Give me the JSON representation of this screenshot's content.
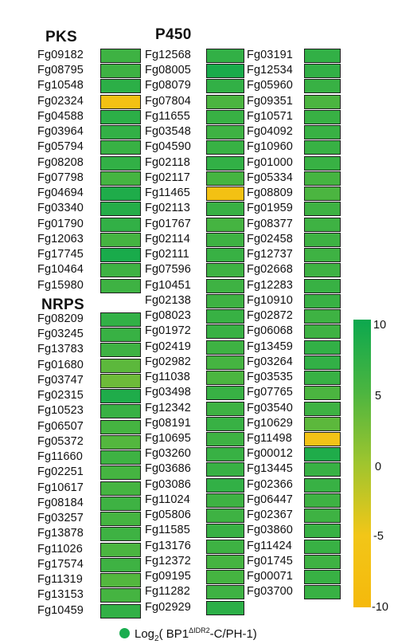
{
  "headers": {
    "pks": "PKS",
    "p450": "P450",
    "nrps": "NRPS"
  },
  "colorbar": {
    "ticks": [
      "10",
      "5",
      "0",
      "-5",
      "-10"
    ],
    "max_color": "#0ca84e",
    "min_color": "#f5b90c"
  },
  "legend": {
    "prefix": "Log",
    "sub": "2",
    "open": "( BP1",
    "sup": "ΔIDR2",
    "rest": "-C/PH-1)"
  },
  "chart_data": {
    "type": "heatmap",
    "value_range": [
      -10,
      10
    ],
    "colorbar_ticks": [
      10,
      5,
      0,
      -5,
      -10
    ],
    "legend": "Log2( BP1ΔIDR2-C/PH-1)",
    "groups": [
      {
        "name": "PKS",
        "genes": [
          "Fg09182",
          "Fg08795",
          "Fg10548",
          "Fg02324",
          "Fg04588",
          "Fg03964",
          "Fg05794",
          "Fg08208",
          "Fg07798",
          "Fg04694",
          "Fg03340",
          "Fg01790",
          "Fg12063",
          "Fg17745",
          "Fg10464",
          "Fg15980"
        ],
        "values": [
          6,
          6,
          7.5,
          -7,
          7.5,
          7,
          6.5,
          7,
          5.5,
          8.5,
          8,
          7,
          5.5,
          9,
          6,
          6
        ]
      },
      {
        "name": "NRPS",
        "genes": [
          "Fg08209",
          "Fg03245",
          "Fg13783",
          "Fg01680",
          "Fg03747",
          "Fg02315",
          "Fg10523",
          "Fg06507",
          "Fg05372",
          "Fg11660",
          "Fg02251",
          "Fg10617",
          "Fg08184",
          "Fg03257",
          "Fg13878",
          "Fg11026",
          "Fg17574",
          "Fg11319",
          "Fg13153",
          "Fg10459"
        ],
        "values": [
          7,
          6.5,
          6,
          4,
          3,
          8.5,
          6.5,
          5.5,
          4.5,
          6,
          5.5,
          5.5,
          6,
          5.5,
          6,
          5,
          6,
          4.5,
          5.5,
          7
        ]
      },
      {
        "name": "P450",
        "genes": [
          "Fg12568",
          "Fg08005",
          "Fg08079",
          "Fg07804",
          "Fg11655",
          "Fg03548",
          "Fg04590",
          "Fg02118",
          "Fg02117",
          "Fg11465",
          "Fg02113",
          "Fg01767",
          "Fg02114",
          "Fg02111",
          "Fg07596",
          "Fg10451",
          "Fg02138",
          "Fg08023",
          "Fg01972",
          "Fg02419",
          "Fg02982",
          "Fg11038",
          "Fg03498",
          "Fg12342",
          "Fg08191",
          "Fg10695",
          "Fg03260",
          "Fg03686",
          "Fg03086",
          "Fg11024",
          "Fg05806",
          "Fg11585",
          "Fg13176",
          "Fg12372",
          "Fg09195",
          "Fg11282",
          "Fg02929"
        ],
        "values": [
          7,
          9,
          7,
          5,
          6.5,
          6,
          6.5,
          7,
          5.5,
          -7,
          6.5,
          5.5,
          6,
          6.5,
          6,
          6,
          6,
          6.5,
          6.5,
          6,
          5.5,
          5,
          6.5,
          6,
          6.5,
          6,
          6.5,
          6.5,
          7,
          6,
          6,
          6.5,
          6,
          5.5,
          5.5,
          6,
          7.5
        ]
      },
      {
        "name": "",
        "genes": [
          "Fg03191",
          "Fg12534",
          "Fg05960",
          "Fg09351",
          "Fg10571",
          "Fg04092",
          "Fg10960",
          "Fg01000",
          "Fg05334",
          "Fg08809",
          "Fg01959",
          "Fg08377",
          "Fg02458",
          "Fg12737",
          "Fg02668",
          "Fg12283",
          "Fg10910",
          "Fg02872",
          "Fg06068",
          "Fg13459",
          "Fg03264",
          "Fg03535",
          "Fg07765",
          "Fg03540",
          "Fg10629",
          "Fg11498",
          "Fg00012",
          "Fg13445",
          "Fg02366",
          "Fg06447",
          "Fg02367",
          "Fg03860",
          "Fg11424",
          "Fg01745",
          "Fg00071",
          "Fg03700"
        ],
        "values": [
          7,
          7,
          6.5,
          5,
          6.5,
          6.5,
          6.5,
          6.5,
          5.5,
          5,
          6,
          6,
          6,
          6,
          6,
          6.5,
          6.5,
          6,
          6,
          7,
          7,
          6.5,
          5,
          6,
          4,
          -6,
          8.5,
          6.5,
          6.5,
          6,
          6,
          6.5,
          6.5,
          6,
          6.5,
          6.5
        ]
      }
    ]
  }
}
